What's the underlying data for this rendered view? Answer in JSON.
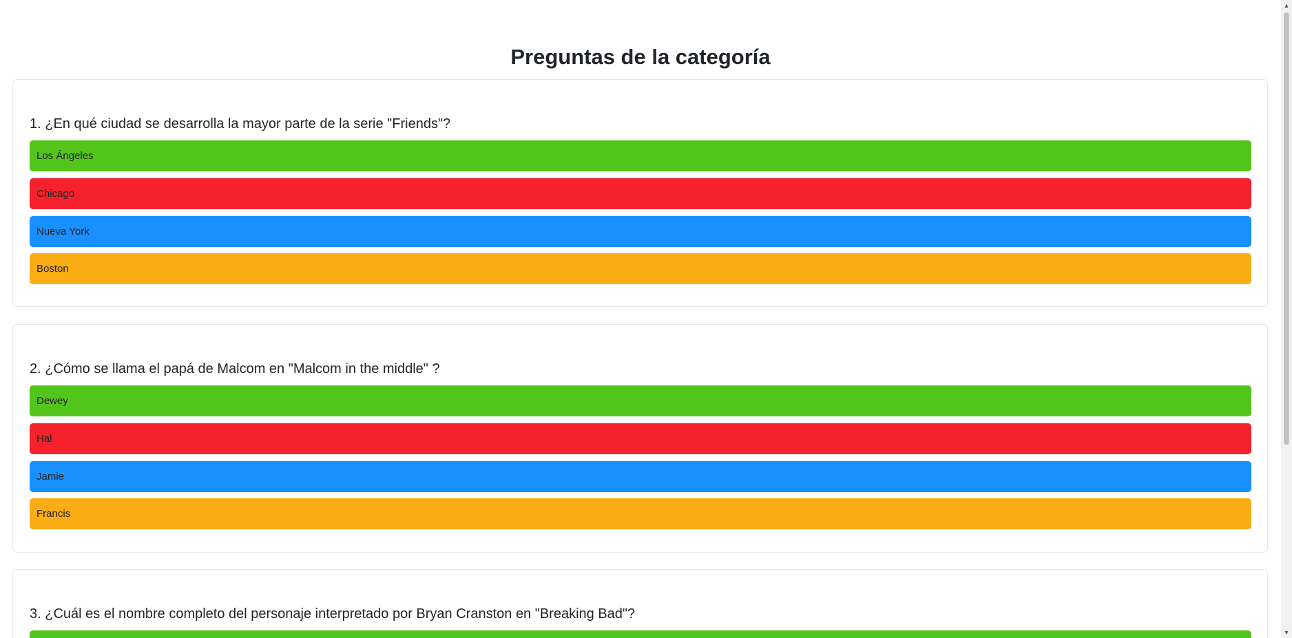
{
  "page": {
    "title": "Preguntas de la categoría"
  },
  "questions": [
    {
      "text": "1. ¿En qué ciudad se desarrolla la mayor parte de la serie \"Friends\"?",
      "options": [
        "Los Ángeles",
        "Chicago",
        "Nueva York",
        "Boston"
      ]
    },
    {
      "text": "2. ¿Cómo se llama el papá de Malcom en \"Malcom in the middle\" ?",
      "options": [
        "Dewey",
        "Hal",
        "Jamie",
        "Francis"
      ]
    },
    {
      "text": "3. ¿Cuál es el nombre completo del personaje interpretado por Bryan Cranston en \"Breaking Bad\"?",
      "options": [
        ""
      ]
    }
  ],
  "colors": {
    "option_1": "#52c41a",
    "option_2": "#f5222d",
    "option_3": "#1890ff",
    "option_4": "#faad14"
  },
  "scrollbar": {
    "up_icon": "chevron-up-icon",
    "down_icon": "chevron-down-icon"
  }
}
